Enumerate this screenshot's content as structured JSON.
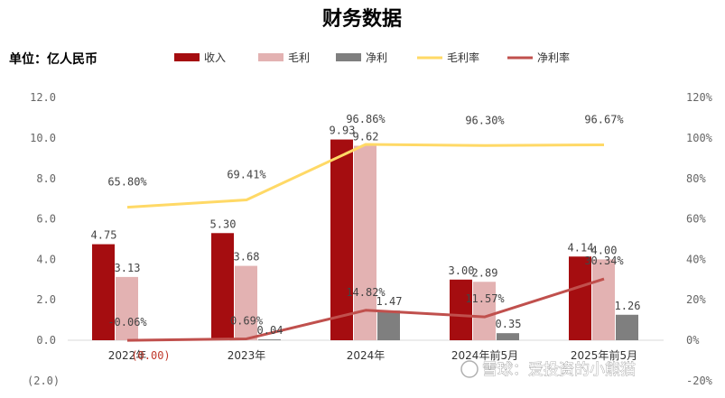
{
  "chart_data": {
    "type": "bar",
    "title": "财务数据",
    "unit_label": "单位：亿人民币",
    "categories": [
      "2022年",
      "2023年",
      "2024年",
      "2024年前5月",
      "2025年前5月"
    ],
    "series": [
      {
        "name": "收入",
        "kind": "bar",
        "axis": "left",
        "color": "#a50d10",
        "values": [
          4.75,
          5.3,
          9.93,
          3.0,
          4.14
        ],
        "labels": [
          "4.75",
          "5.30",
          "9.93",
          "3.00",
          "4.14"
        ]
      },
      {
        "name": "毛利",
        "kind": "bar",
        "axis": "left",
        "color": "#e3b2b2",
        "values": [
          3.13,
          3.68,
          9.62,
          2.89,
          4.0
        ],
        "labels": [
          "3.13",
          "3.68",
          "9.62",
          "2.89",
          "4.00"
        ]
      },
      {
        "name": "净利",
        "kind": "bar",
        "axis": "left",
        "color": "#7f7f7f",
        "values": [
          -0.0,
          0.04,
          1.47,
          0.35,
          1.26
        ],
        "labels": [
          "(0.00)",
          "0.04",
          "1.47",
          "0.35",
          "1.26"
        ]
      },
      {
        "name": "毛利率",
        "kind": "line",
        "axis": "right",
        "color": "#ffd966",
        "values": [
          65.8,
          69.41,
          96.86,
          96.3,
          96.67
        ],
        "labels": [
          "65.80%",
          "69.41%",
          "96.86%",
          "96.30%",
          "96.67%"
        ]
      },
      {
        "name": "净利率",
        "kind": "line",
        "axis": "right",
        "color": "#c0504d",
        "values": [
          -0.06,
          0.69,
          14.82,
          11.57,
          30.34
        ],
        "labels": [
          "-0.06%",
          "0.69%",
          "14.82%",
          "11.57%",
          "30.34%"
        ]
      }
    ],
    "y_left": {
      "ylim": [
        -2.0,
        12.0
      ],
      "ticks": [
        -2,
        0,
        2,
        4,
        6,
        8,
        10,
        12
      ],
      "tick_labels": [
        "(2.0)",
        "0.0",
        "2.0",
        "4.0",
        "6.0",
        "8.0",
        "10.0",
        "12.0"
      ]
    },
    "y_right": {
      "ylim": [
        -20,
        120
      ],
      "ticks": [
        -20,
        0,
        20,
        40,
        60,
        80,
        100,
        120
      ],
      "tick_labels": [
        "-20%",
        "0%",
        "20%",
        "40%",
        "60%",
        "80%",
        "100%",
        "120%"
      ]
    },
    "grid": false,
    "legend_position": "top"
  },
  "watermark": "雪球：爱投资的小熊猫"
}
